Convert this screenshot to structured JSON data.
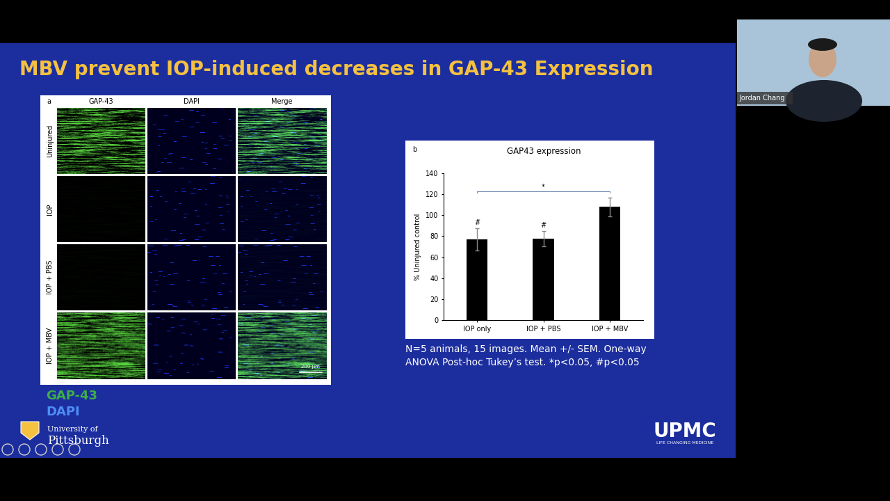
{
  "slide": {
    "title": "MBV prevent IOP-induced decreases in GAP-43 Expression",
    "panel_a": {
      "label": "a",
      "columns": [
        "GAP-43",
        "DAPI",
        "Merge"
      ],
      "rows": [
        "Uninjured",
        "IOP",
        "IOP + PBS",
        "IOP + MBV"
      ],
      "scale_bar": "200 µm"
    },
    "stain_legend": [
      {
        "text": "GAP-43",
        "color": "#3fae49"
      },
      {
        "text": "DAPI",
        "color": "#4e8ef7"
      }
    ],
    "note_lines": [
      "N=5 animals, 15 images. Mean +/- SEM. One-way",
      "ANOVA Post-hoc Tukey’s test. *p<0.05, #p<0.05"
    ],
    "logos": {
      "university": [
        "University of",
        "Pittsburgh"
      ],
      "upmc": [
        "UPMC",
        "LIFE CHANGING MEDICINE"
      ]
    },
    "speaker": "Jordan Chang"
  },
  "chart_data": {
    "type": "bar",
    "panel_label": "b",
    "title": "GAP43 expression",
    "y_label": "% Uninjured control",
    "categories": [
      "IOP only",
      "IOP + PBS",
      "IOP + MBV"
    ],
    "values": [
      77,
      77.5,
      108
    ],
    "errors": [
      10.5,
      7.5,
      9
    ],
    "bar_marks": [
      "#",
      "#",
      null
    ],
    "significance": {
      "between": [
        "IOP only",
        "IOP + MBV"
      ],
      "y": 123,
      "label": "*"
    },
    "color": "#000000",
    "ylim": [
      0,
      140
    ],
    "yticks": [
      0,
      20,
      40,
      60,
      80,
      100,
      120,
      140
    ]
  }
}
